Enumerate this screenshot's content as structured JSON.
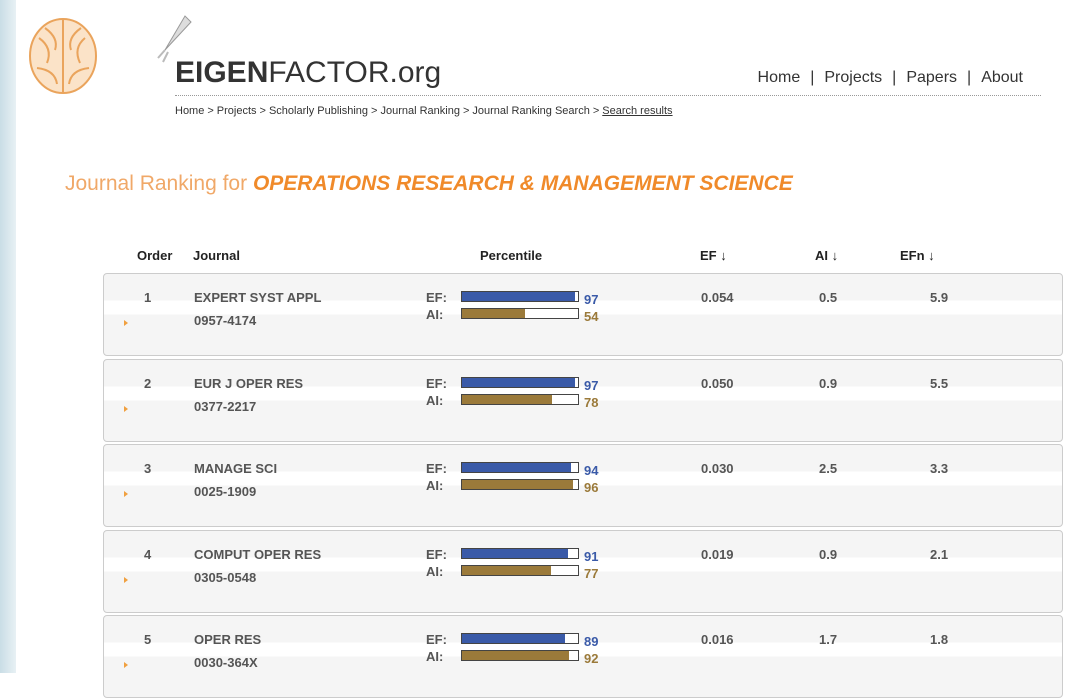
{
  "header": {
    "logo_bold": "EIGEN",
    "logo_rest": "FACTOR.org",
    "nav": [
      "Home",
      "Projects",
      "Papers",
      "About"
    ],
    "nav_separator": "|",
    "breadcrumb": [
      "Home",
      "Projects",
      "Scholarly Publishing",
      "Journal Ranking",
      "Journal Ranking Search",
      "Search results"
    ],
    "breadcrumb_separator": ">"
  },
  "title": {
    "prefix": "Journal Ranking for",
    "subject": "OPERATIONS RESEARCH & MANAGEMENT SCIENCE"
  },
  "table": {
    "columns": [
      "Order",
      "Journal",
      "Percentile",
      "EF ↓",
      "AI ↓",
      "EFn ↓"
    ],
    "ef_label": "EF:",
    "ai_label": "AI:",
    "rows": [
      {
        "order": "1",
        "journal": "EXPERT SYST APPL",
        "issn": "0957-4174",
        "ef_percentile": 97,
        "ai_percentile": 54,
        "ef": "0.054",
        "ai": "0.5",
        "efn": "5.9"
      },
      {
        "order": "2",
        "journal": "EUR J OPER RES",
        "issn": "0377-2217",
        "ef_percentile": 97,
        "ai_percentile": 78,
        "ef": "0.050",
        "ai": "0.9",
        "efn": "5.5"
      },
      {
        "order": "3",
        "journal": "MANAGE SCI",
        "issn": "0025-1909",
        "ef_percentile": 94,
        "ai_percentile": 96,
        "ef": "0.030",
        "ai": "2.5",
        "efn": "3.3"
      },
      {
        "order": "4",
        "journal": "COMPUT OPER RES",
        "issn": "0305-0548",
        "ef_percentile": 91,
        "ai_percentile": 77,
        "ef": "0.019",
        "ai": "0.9",
        "efn": "2.1"
      },
      {
        "order": "5",
        "journal": "OPER RES",
        "issn": "0030-364X",
        "ef_percentile": 89,
        "ai_percentile": 92,
        "ef": "0.016",
        "ai": "1.7",
        "efn": "1.8"
      }
    ]
  }
}
